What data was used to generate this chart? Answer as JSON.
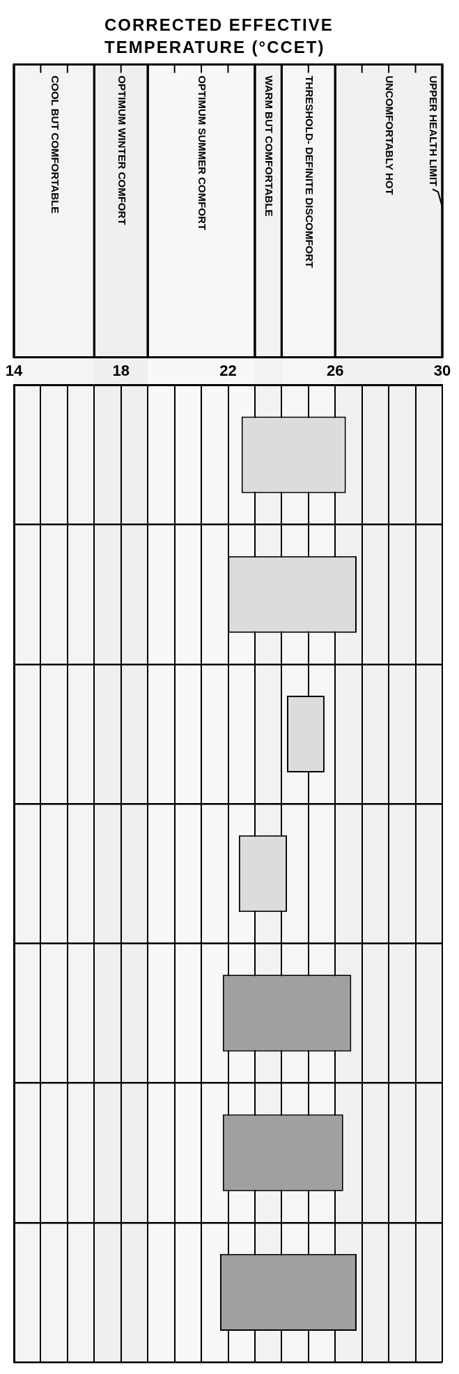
{
  "chart_data": {
    "type": "bar",
    "orientation": "horizontal",
    "title": "CORRECTED EFFECTIVE TEMPERATURE (°CCET)",
    "categories": [
      null,
      null,
      null,
      null,
      null,
      null,
      null
    ],
    "base": [
      22.5,
      22.0,
      24.2,
      22.4,
      21.8,
      21.8,
      21.7
    ],
    "values": [
      3.9,
      4.8,
      1.4,
      1.8,
      4.8,
      4.5,
      5.1
    ],
    "colors": [
      "#dcdcdc",
      "#dcdcdc",
      "#dcdcdc",
      "#dcdcdc",
      "#a0a0a0",
      "#a0a0a0",
      "#a0a0a0"
    ],
    "xlim": [
      14,
      30
    ],
    "xticks": [
      14,
      {
        "value": 15,
        "label": null
      },
      {
        "value": 16,
        "label": null
      },
      {
        "value": 17,
        "label": null
      },
      18,
      {
        "value": 19,
        "label": null
      },
      {
        "value": 20,
        "label": null
      },
      {
        "value": 21,
        "label": null
      },
      22,
      {
        "value": 23,
        "label": null
      },
      {
        "value": 24,
        "label": null
      },
      {
        "value": 25,
        "label": null
      },
      26,
      {
        "value": 27,
        "label": null
      },
      {
        "value": 28,
        "label": null
      },
      {
        "value": 29,
        "label": null
      },
      30
    ],
    "bands": [
      {
        "axis": "x",
        "from": 14,
        "to": 17,
        "label": "COOL BUT COMFORTABLE",
        "color": "#f4f4f4"
      },
      {
        "axis": "x",
        "from": 17,
        "to": 19,
        "label": "OPTIMUM WINTER COMFORT",
        "color": "#efefef"
      },
      {
        "axis": "x",
        "from": 19,
        "to": 23,
        "label": "OPTIMUM SUMMER COMFORT",
        "color": "#f8f8f8"
      },
      {
        "axis": "x",
        "from": 23,
        "to": 24,
        "label": "WARM BUT COMFORTABLE",
        "color": "#f2f2f2"
      },
      {
        "axis": "x",
        "from": 24,
        "to": 26,
        "label": "THRESHOLD- DEFINITE DISCOMFORT",
        "color": "#f6f6f6"
      },
      {
        "axis": "x",
        "from": 26,
        "to": 30,
        "label": "UNCOMFORTABLY HOT",
        "color": "#f1f1f1"
      }
    ],
    "annotations": [
      "UPPER HEALTH LIMIT"
    ],
    "grid": true,
    "tick_labels": "x",
    "legend": false
  }
}
